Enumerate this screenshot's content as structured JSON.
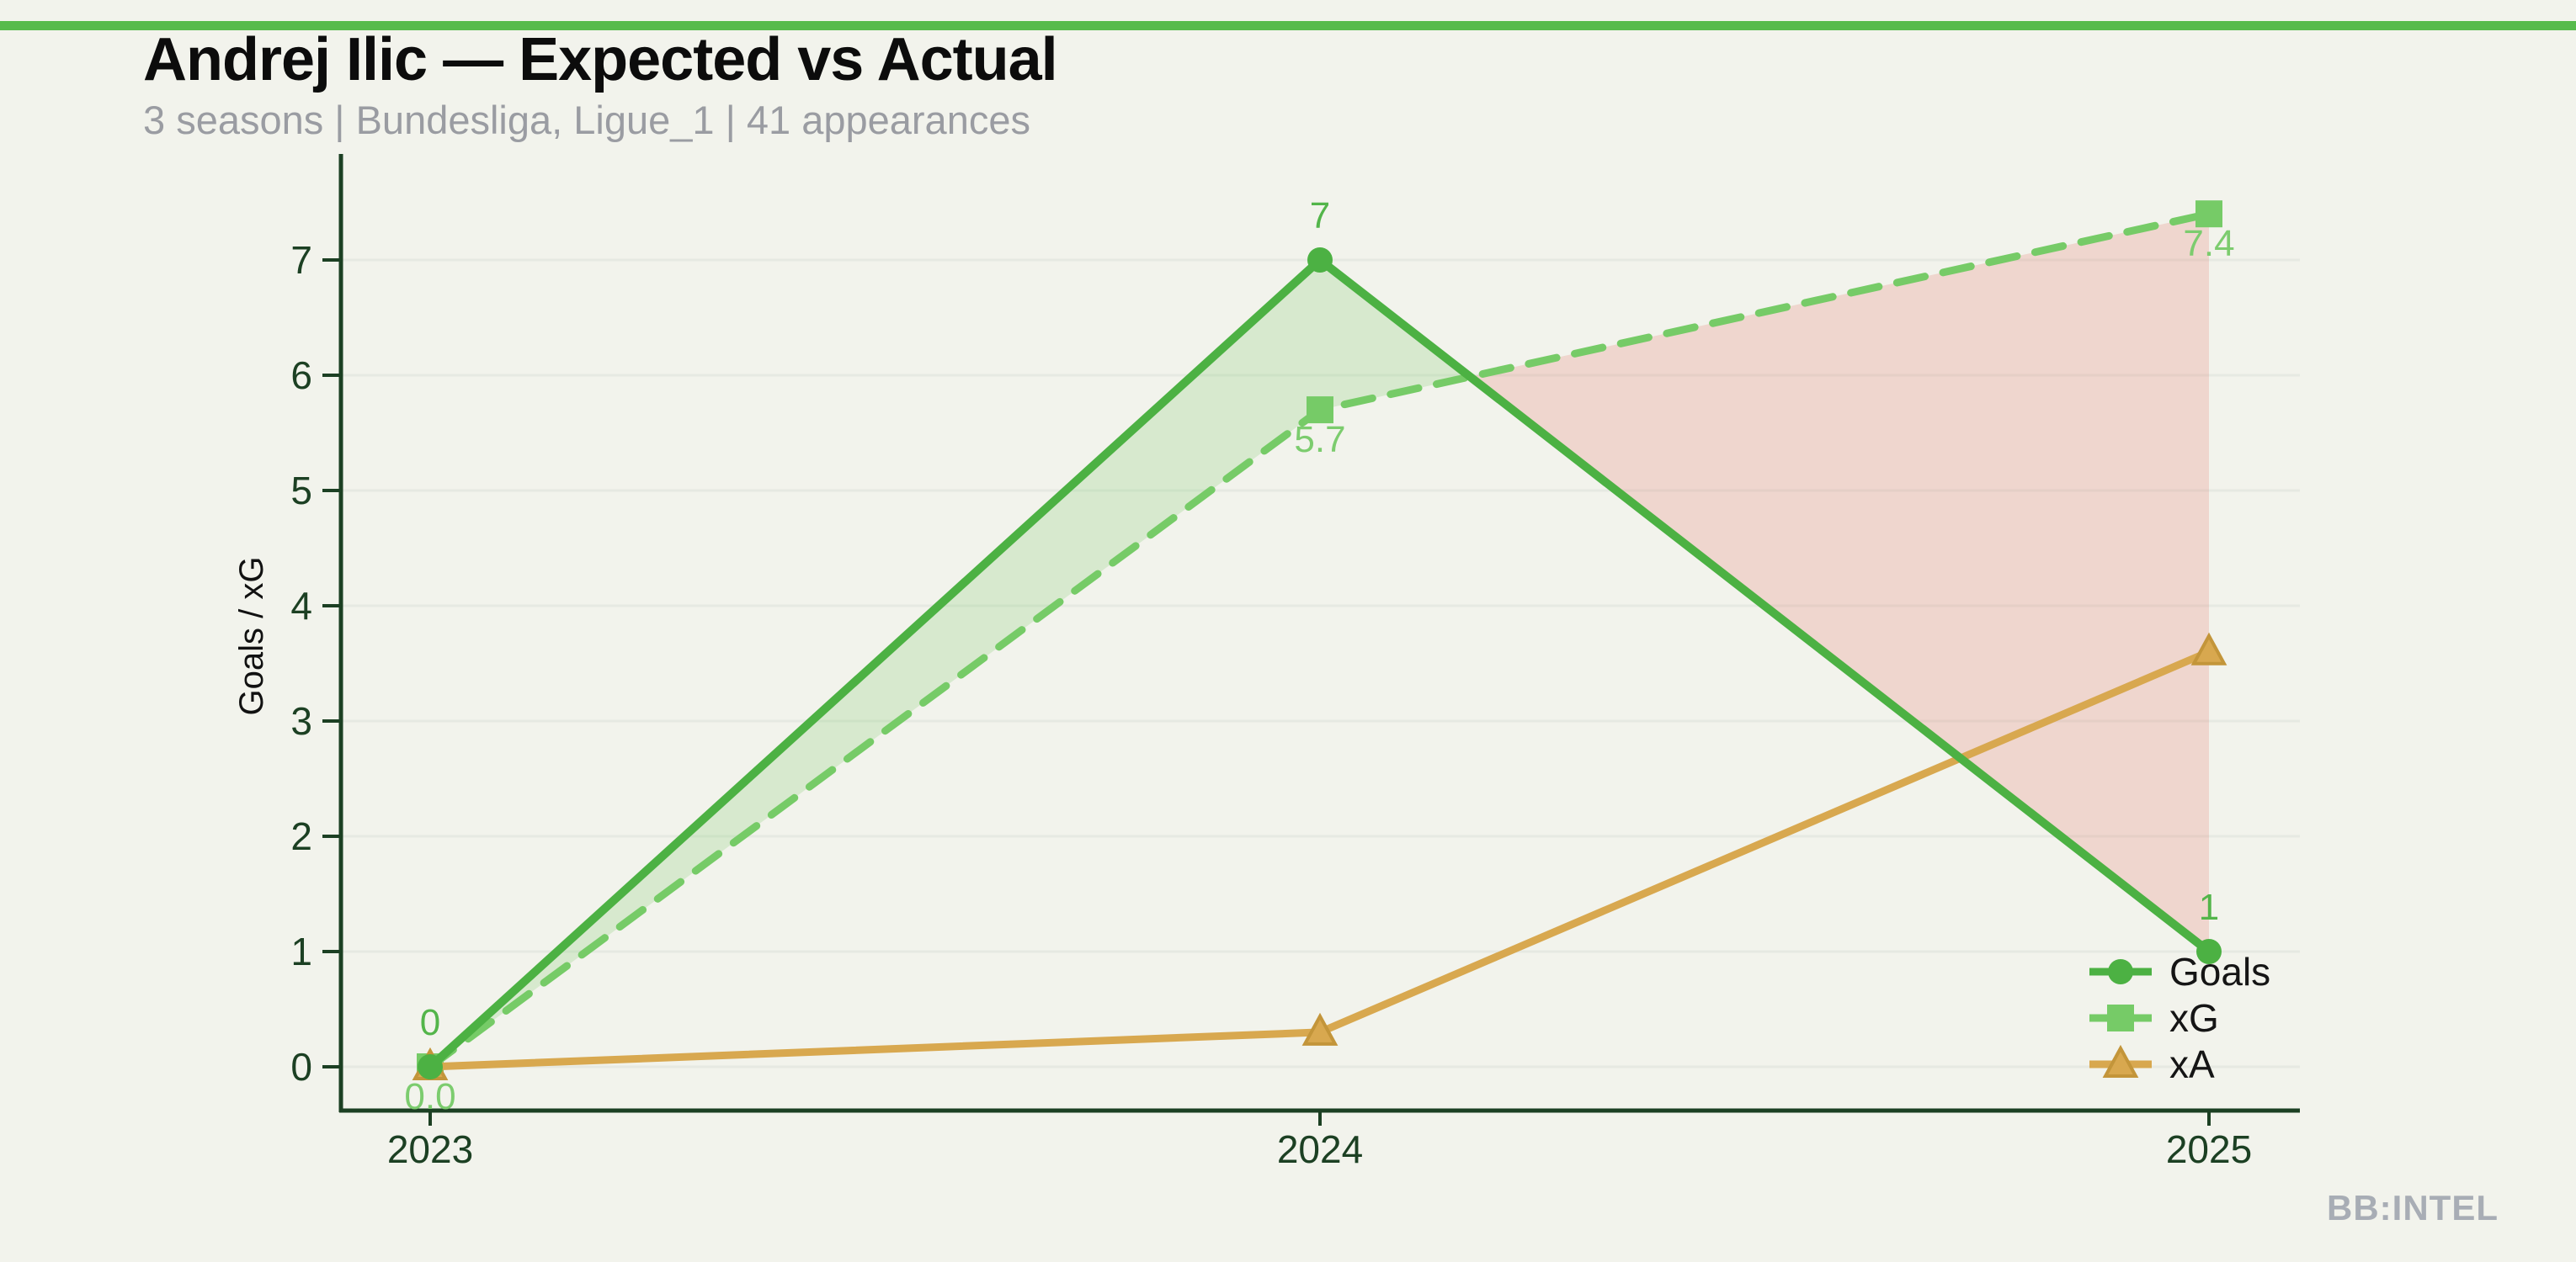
{
  "watermark": {
    "label": "BB:INTEL"
  },
  "theme": {
    "background": "#F2F3EC",
    "accent_bar": "#57BB4C",
    "axis": "#1C4023",
    "subtitle_color": "#9A9CA2",
    "watermark_color": "#A8ADB5"
  },
  "chart_data": {
    "type": "line",
    "title": "Andrej Ilic — Expected vs Actual",
    "subtitle": "3 seasons | Bundesliga, Ligue_1 | 41 appearances",
    "categories": [
      "2023",
      "2024",
      "2025"
    ],
    "series": [
      {
        "name": "xG",
        "values": [
          0,
          5.7,
          7.4
        ],
        "labels": [
          "0.0",
          "5.7",
          "7.4"
        ],
        "label_side": "below",
        "label_color": "#7CCC6E",
        "color": "#76CB67",
        "marker": "square",
        "dash": true
      },
      {
        "name": "xA",
        "values": [
          0,
          0.3,
          3.6
        ],
        "color": "#D8A84F",
        "marker": "triangle",
        "edge": "#C3953A",
        "dash": false
      },
      {
        "name": "Goals",
        "values": [
          0,
          7,
          1
        ],
        "labels": [
          "0",
          "7",
          "1"
        ],
        "label_side": "above",
        "label_color": "#53B54A",
        "color": "#4CB143",
        "marker": "circle",
        "dash": false
      }
    ],
    "legend_order": [
      "Goals",
      "xG",
      "xA"
    ],
    "legend_position": "lower right",
    "xlabel": "",
    "ylabel": "Goals / xG",
    "yticks": [
      0,
      1,
      2,
      3,
      4,
      5,
      6,
      7
    ],
    "ylim": [
      0,
      7.9
    ],
    "grid": true,
    "fill_between": {
      "a": "Goals",
      "b": "xG",
      "positive_color": "rgba(118,199,102,0.22)",
      "negative_color": "rgba(229,115,99,0.22)"
    },
    "axis_color": "#1C4023",
    "grid_color": "rgba(28,64,35,0.05)"
  }
}
